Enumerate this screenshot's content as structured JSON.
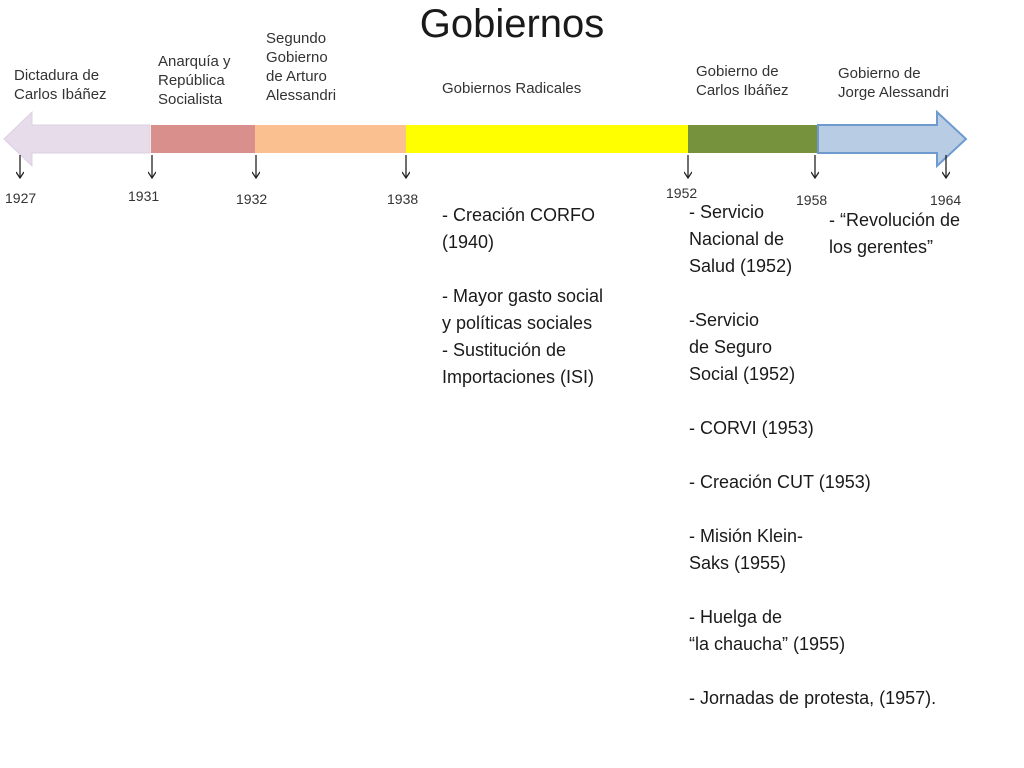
{
  "title": "Gobiernos",
  "periods": [
    {
      "label": "Dictadura de\nCarlos Ibáñez",
      "from": "1927",
      "to": "1931",
      "color": "#e6dcea"
    },
    {
      "label": "Anarquía y\nRepública\nSocialista",
      "from": "1931",
      "to": "1932",
      "color": "#d9908d"
    },
    {
      "label": "Segundo\nGobierno\nde Arturo\nAlessandri",
      "from": "1932",
      "to": "1938",
      "color": "#fac08f"
    },
    {
      "label": "Gobiernos Radicales",
      "from": "1938",
      "to": "1952",
      "color": "#ffff00"
    },
    {
      "label": "Gobierno de\nCarlos Ibáñez",
      "from": "1952",
      "to": "1958",
      "color": "#76923c"
    },
    {
      "label": "Gobierno de\nJorge Alessandri",
      "from": "1958",
      "to": "1964",
      "color": "#b8cce4"
    }
  ],
  "years": [
    "1927",
    "1931",
    "1932",
    "1938",
    "1952",
    "1958",
    "1964"
  ],
  "events": {
    "radicales": [
      "- Creación CORFO\n(1940)",
      "-    Mayor gasto social\ny políticas sociales",
      "-    Sustitución de\nImportaciones (ISI)"
    ],
    "ibanez": [
      "-    Servicio\nNacional de\nSalud (1952)",
      "-Servicio\nde Seguro\nSocial (1952)",
      "- CORVI (1953)",
      "- Creación CUT (1953)",
      "-    Misión Klein-\nSaks (1955)",
      "-    Huelga de\n“la chaucha” (1955)",
      "- Jornadas de protesta, (1957)."
    ],
    "alessandri": [
      "-    “Revolución de\nlos gerentes”"
    ]
  }
}
